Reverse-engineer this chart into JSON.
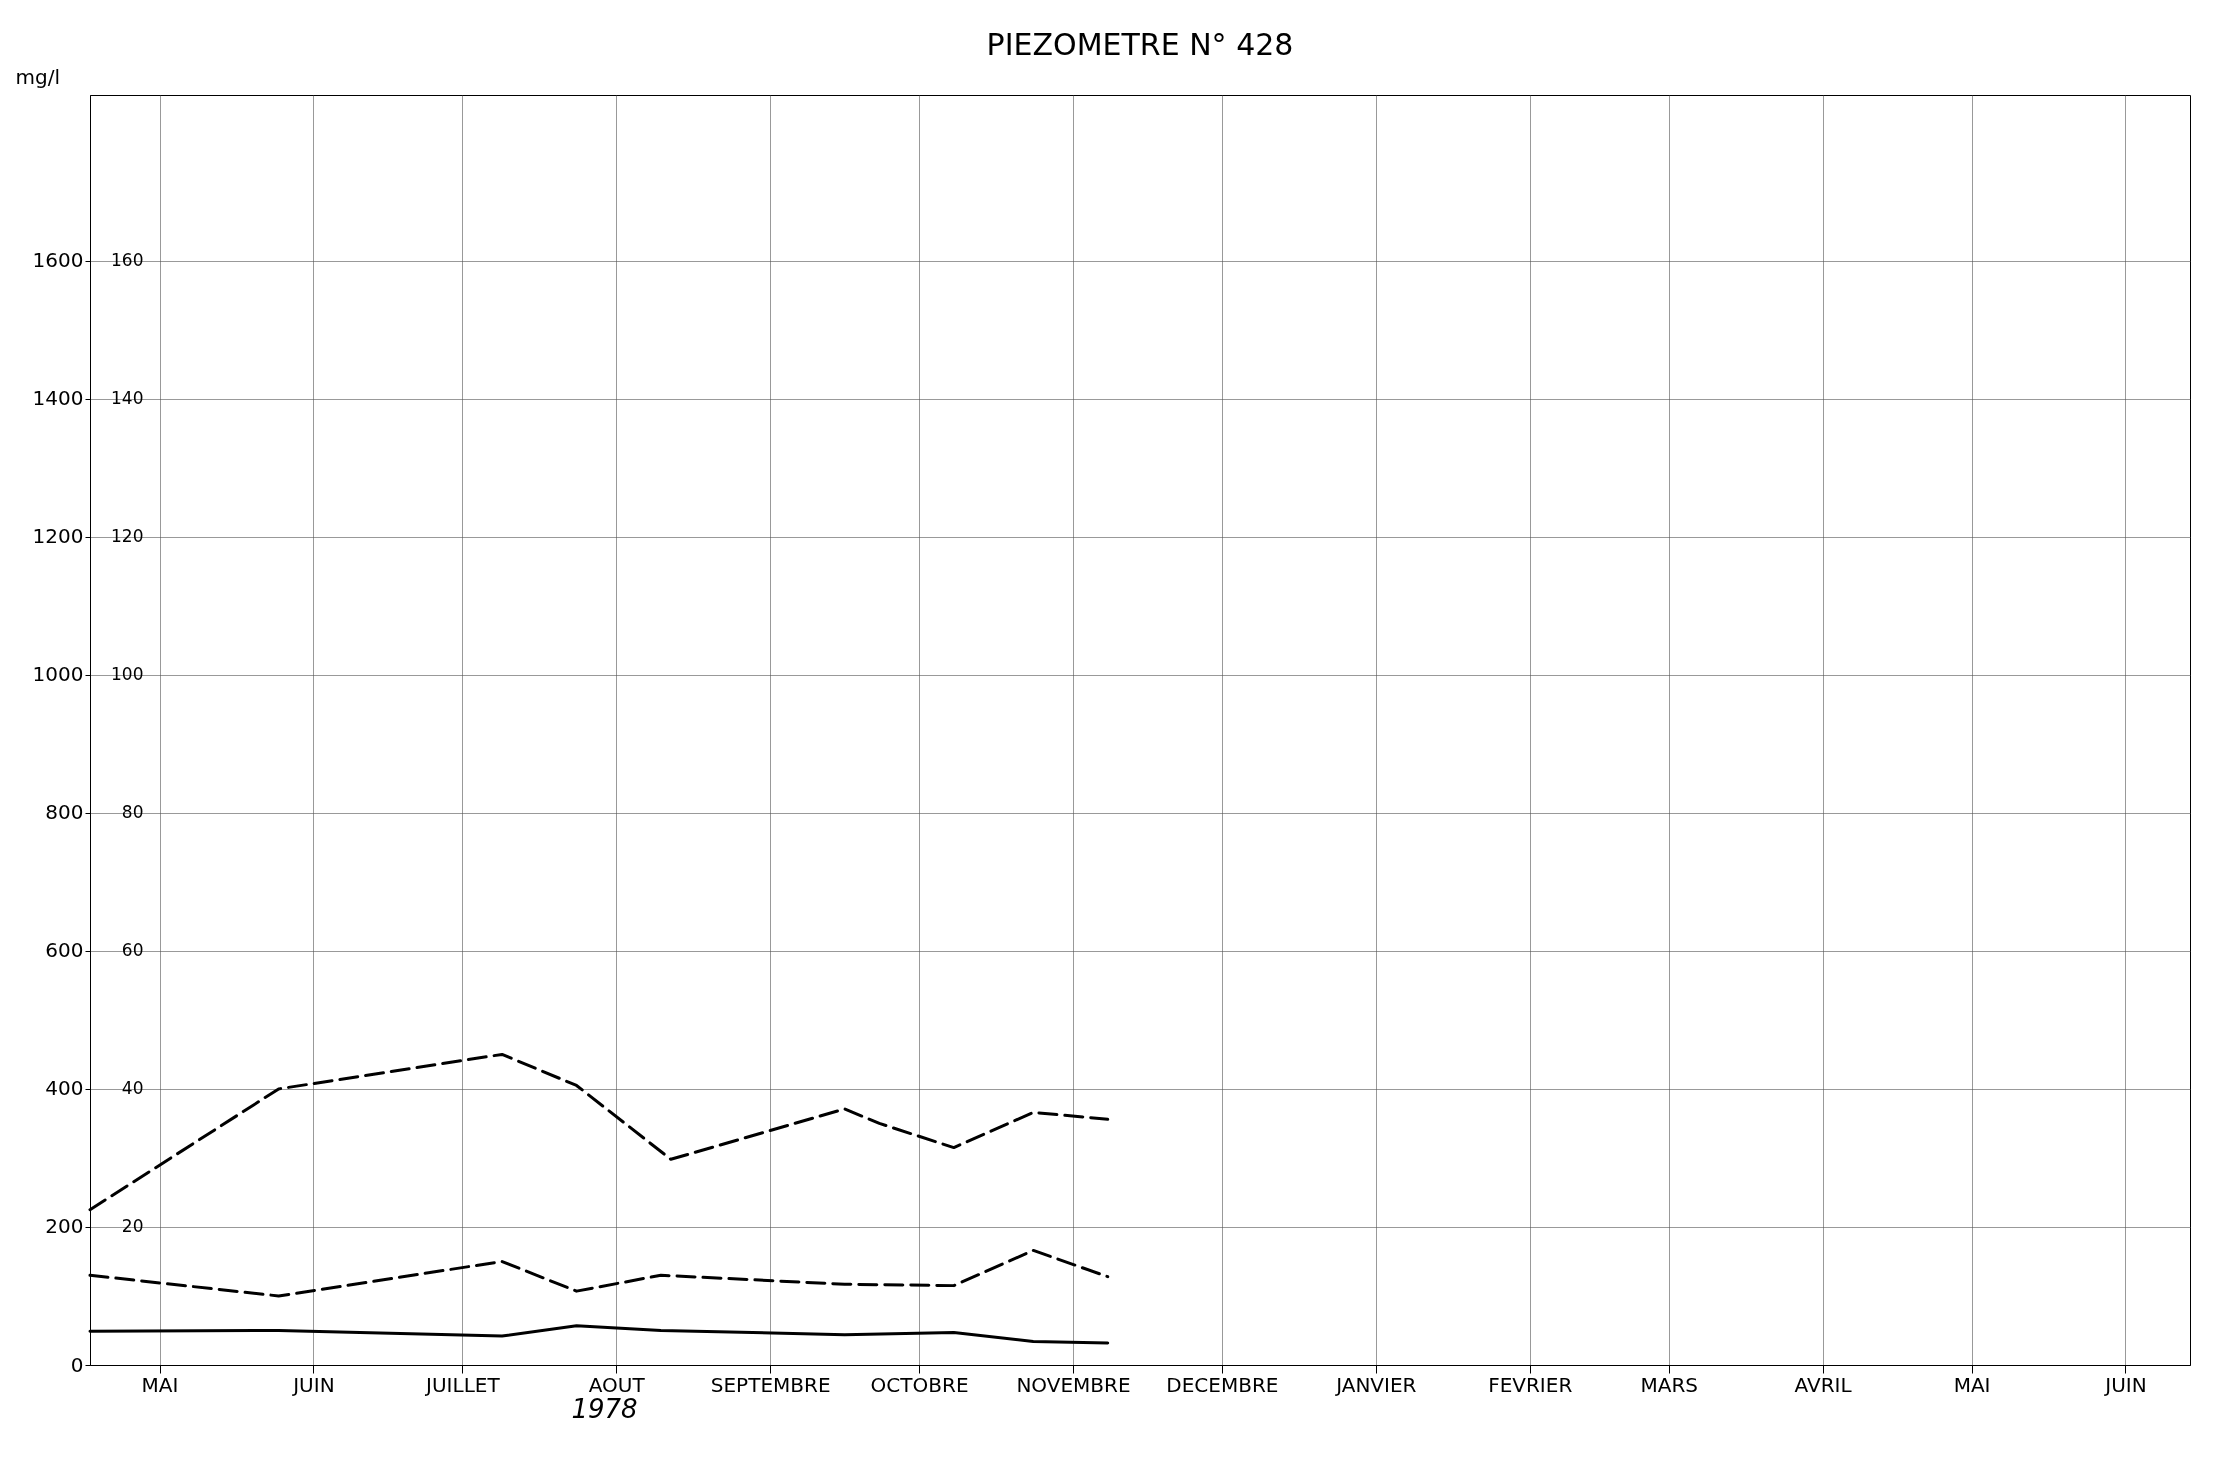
{
  "chart_data": {
    "type": "line",
    "title": "PIEZOMETRE N° 428",
    "ylabel": "mg/l",
    "xlim": [
      "1978-05-01",
      "1979-06-28"
    ],
    "xticks": [
      {
        "value": "1978-05-15",
        "label": "MAI"
      },
      {
        "value": "1978-06-15",
        "label": "JUIN"
      },
      {
        "value": "1978-07-15",
        "label": "JUILLET"
      },
      {
        "value": "1978-08-15",
        "label": "AOUT"
      },
      {
        "value": "1978-09-15",
        "label": "SEPTEMBRE"
      },
      {
        "value": "1978-10-15",
        "label": "OCTOBRE"
      },
      {
        "value": "1978-11-15",
        "label": "NOVEMBRE"
      },
      {
        "value": "1978-12-15",
        "label": "DECEMBRE"
      },
      {
        "value": "1979-01-15",
        "label": "JANVIER"
      },
      {
        "value": "1979-02-15",
        "label": "FEVRIER"
      },
      {
        "value": "1979-03-15",
        "label": "MARS"
      },
      {
        "value": "1979-04-15",
        "label": "AVRIL"
      },
      {
        "value": "1979-05-15",
        "label": "MAI"
      },
      {
        "value": "1979-06-15",
        "label": "JUIN"
      }
    ],
    "ylim": [
      0,
      1840
    ],
    "yticks": [
      0,
      200,
      400,
      600,
      800,
      1000,
      1200,
      1400,
      1600
    ],
    "y2lim": [
      0,
      184
    ],
    "y2ticks": [
      20,
      40,
      60,
      80,
      100,
      120,
      140,
      160
    ],
    "grid": true,
    "marker": "none",
    "annotations": [
      "1978"
    ],
    "series": [
      {
        "color": "#000000",
        "line_style": "dashed",
        "x": [
          "1978-05-01",
          "1978-06-08",
          "1978-07-23",
          "1978-08-07",
          "1978-08-26",
          "1978-09-30",
          "1978-10-07",
          "1978-10-22",
          "1978-11-07",
          "1978-11-22"
        ],
        "values": [
          225,
          400,
          450,
          405,
          298,
          371,
          350,
          315,
          366,
          356
        ]
      },
      {
        "color": "#000000",
        "line_style": "dashed",
        "x": [
          "1978-05-01",
          "1978-06-08",
          "1978-07-23",
          "1978-08-07",
          "1978-08-24",
          "1978-09-30",
          "1978-10-22",
          "1978-11-07",
          "1978-11-22"
        ],
        "values": [
          130,
          100,
          150,
          107,
          130,
          117,
          115,
          166,
          128
        ]
      },
      {
        "color": "#000000",
        "line_style": "solid",
        "x": [
          "1978-05-01",
          "1978-06-08",
          "1978-07-23",
          "1978-08-07",
          "1978-08-24",
          "1978-09-30",
          "1978-10-22",
          "1978-11-07",
          "1978-11-22"
        ],
        "values": [
          49,
          50,
          42,
          57,
          50,
          44,
          47,
          34,
          32
        ]
      }
    ]
  }
}
